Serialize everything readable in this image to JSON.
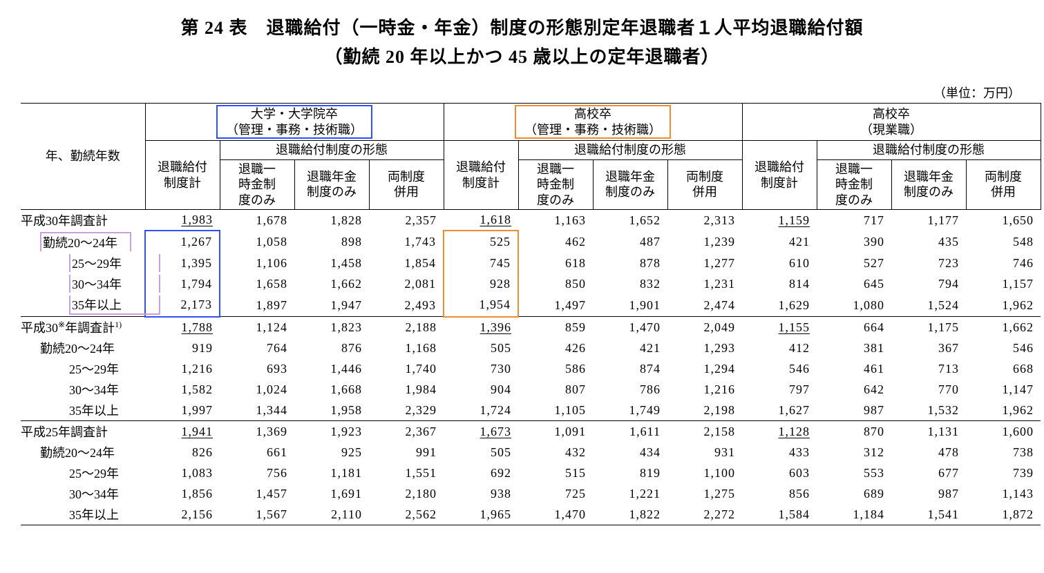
{
  "title_line1": "第 24 表　退職給付（一時金・年金）制度の形態別定年退職者１人平均退職給付額",
  "title_line2": "（勤続 20 年以上かつ 45 歳以上の定年退職者）",
  "unit_label": "（単位：万円）",
  "row_header": "年、勤続年数",
  "group_headers": {
    "g1_l1": "大学・大学院卒",
    "g1_l2": "（管理・事務・技術職）",
    "g2_l1": "高校卒",
    "g2_l2": "（管理・事務・技術職）",
    "g3_l1": "高校卒",
    "g3_l2": "（現業職）"
  },
  "sub1": "退職給付制度計",
  "sub_span": "退職給付制度の形態",
  "sub2": "退職一時金制度のみ",
  "sub3": "退職年金制度のみ",
  "sub4": "両制度併用",
  "highlight_colors": {
    "blue": "#304fff",
    "orange": "#f08c2e",
    "purple": "#c9a0dc"
  },
  "blocks": [
    {
      "rows": [
        {
          "label": "平成30年調査計",
          "indent": 0,
          "vals": [
            "1,983",
            "1,678",
            "1,828",
            "2,357",
            "1,618",
            "1,163",
            "1,652",
            "2,313",
            "1,159",
            "717",
            "1,177",
            "1,650"
          ]
        },
        {
          "label": "勤続20～24年",
          "indent": 1,
          "vals": [
            "1,267",
            "1,058",
            "898",
            "1,743",
            "525",
            "462",
            "487",
            "1,239",
            "421",
            "390",
            "435",
            "548"
          ]
        },
        {
          "label": "25～29年",
          "indent": 2,
          "vals": [
            "1,395",
            "1,106",
            "1,458",
            "1,854",
            "745",
            "618",
            "878",
            "1,277",
            "610",
            "527",
            "723",
            "746"
          ]
        },
        {
          "label": "30～34年",
          "indent": 2,
          "vals": [
            "1,794",
            "1,658",
            "1,662",
            "2,081",
            "928",
            "850",
            "832",
            "1,231",
            "814",
            "645",
            "794",
            "1,157"
          ]
        },
        {
          "label": "35年以上",
          "indent": 2,
          "vals": [
            "2,173",
            "1,897",
            "1,947",
            "2,493",
            "1,954",
            "1,497",
            "1,901",
            "2,474",
            "1,629",
            "1,080",
            "1,524",
            "1,962"
          ]
        }
      ]
    },
    {
      "rows": [
        {
          "label": "平成30※年調査計1)",
          "indent": 0,
          "vals": [
            "1,788",
            "1,124",
            "1,823",
            "2,188",
            "1,396",
            "859",
            "1,470",
            "2,049",
            "1,155",
            "664",
            "1,175",
            "1,662"
          ]
        },
        {
          "label": "勤続20～24年",
          "indent": 1,
          "vals": [
            "919",
            "764",
            "876",
            "1,168",
            "505",
            "426",
            "421",
            "1,293",
            "412",
            "381",
            "367",
            "546"
          ]
        },
        {
          "label": "25～29年",
          "indent": 2,
          "vals": [
            "1,216",
            "693",
            "1,446",
            "1,740",
            "730",
            "586",
            "874",
            "1,294",
            "546",
            "461",
            "713",
            "668"
          ]
        },
        {
          "label": "30～34年",
          "indent": 2,
          "vals": [
            "1,582",
            "1,024",
            "1,668",
            "1,984",
            "904",
            "807",
            "786",
            "1,216",
            "797",
            "642",
            "770",
            "1,147"
          ]
        },
        {
          "label": "35年以上",
          "indent": 2,
          "vals": [
            "1,997",
            "1,344",
            "1,958",
            "2,329",
            "1,724",
            "1,105",
            "1,749",
            "2,198",
            "1,627",
            "987",
            "1,532",
            "1,962"
          ]
        }
      ]
    },
    {
      "rows": [
        {
          "label": "平成25年調査計",
          "indent": 0,
          "vals": [
            "1,941",
            "1,369",
            "1,923",
            "2,367",
            "1,673",
            "1,091",
            "1,611",
            "2,158",
            "1,128",
            "870",
            "1,131",
            "1,600"
          ]
        },
        {
          "label": "勤続20～24年",
          "indent": 1,
          "vals": [
            "826",
            "661",
            "925",
            "991",
            "505",
            "432",
            "434",
            "931",
            "433",
            "312",
            "478",
            "738"
          ]
        },
        {
          "label": "25～29年",
          "indent": 2,
          "vals": [
            "1,083",
            "756",
            "1,181",
            "1,551",
            "692",
            "515",
            "819",
            "1,100",
            "603",
            "553",
            "677",
            "739"
          ]
        },
        {
          "label": "30～34年",
          "indent": 2,
          "vals": [
            "1,856",
            "1,457",
            "1,691",
            "2,180",
            "938",
            "725",
            "1,221",
            "1,275",
            "856",
            "689",
            "987",
            "1,143"
          ]
        },
        {
          "label": "35年以上",
          "indent": 2,
          "vals": [
            "2,156",
            "1,567",
            "2,110",
            "2,562",
            "1,965",
            "1,470",
            "1,822",
            "2,272",
            "1,584",
            "1,184",
            "1,541",
            "1,872"
          ]
        }
      ]
    }
  ],
  "highlights": {
    "header_blue": {
      "group": 0
    },
    "header_orange": {
      "group": 1
    },
    "col_blue": {
      "block": 0,
      "rows": [
        1,
        2,
        3,
        4
      ],
      "col": 0
    },
    "col_orange": {
      "block": 0,
      "rows": [
        1,
        2,
        3,
        4
      ],
      "col": 4
    },
    "label_purple": {
      "block": 0,
      "rows": [
        1,
        2,
        3,
        4
      ]
    }
  }
}
